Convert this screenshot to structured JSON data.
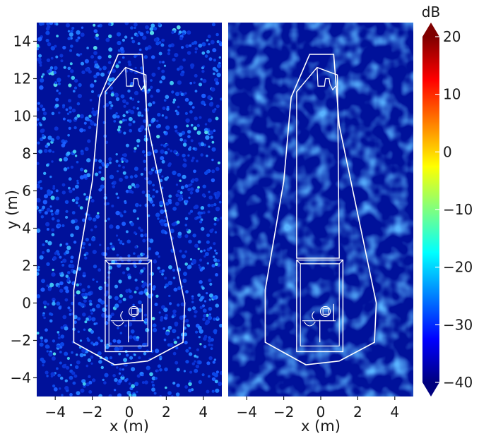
{
  "figure": {
    "colorbar_unit": "dB"
  },
  "chart_data": [
    {
      "type": "heatmap",
      "panel": "left",
      "xlabel": "x (m)",
      "ylabel": "y (m)",
      "xlim": [
        -5,
        5
      ],
      "ylim": [
        -5,
        15
      ],
      "xticks": [
        "−4",
        "−2",
        "0",
        "2",
        "4"
      ],
      "yticks": [
        "−4",
        "−2",
        "0",
        "2",
        "4",
        "6",
        "8",
        "10",
        "12",
        "14"
      ],
      "xtick_values": [
        -4,
        -2,
        0,
        2,
        4
      ],
      "ytick_values": [
        -4,
        -2,
        0,
        2,
        4,
        6,
        8,
        10,
        12,
        14
      ],
      "value_range_db": [
        -40,
        20
      ],
      "background_level_db": -40,
      "texture": "sparse-speckle",
      "outline_color": "#ffffff",
      "outline_shapes": {
        "hull": [
          [
            -0.6,
            13.3
          ],
          [
            0.7,
            13.3
          ],
          [
            1.0,
            9.5
          ],
          [
            3.0,
            0.0
          ],
          [
            2.9,
            -2.1
          ],
          [
            1.0,
            -3.1
          ],
          [
            -0.8,
            -3.3
          ],
          [
            -3.0,
            -2.1
          ],
          [
            -3.0,
            0.7
          ],
          [
            -2.0,
            6.5
          ],
          [
            -1.6,
            11.0
          ]
        ],
        "inner_body": [
          [
            -1.3,
            11.3
          ],
          [
            -0.2,
            12.6
          ],
          [
            0.9,
            12.2
          ],
          [
            1.0,
            2.4
          ],
          [
            -1.3,
            2.4
          ]
        ],
        "cabin_box": [
          [
            -1.3,
            2.3
          ],
          [
            1.2,
            2.3
          ],
          [
            1.2,
            -2.6
          ],
          [
            -1.3,
            -2.6
          ]
        ]
      }
    },
    {
      "type": "heatmap",
      "panel": "right",
      "xlabel": "x (m)",
      "ylabel": "",
      "xlim": [
        -5,
        5
      ],
      "ylim": [
        -5,
        15
      ],
      "xticks": [
        "−4",
        "−2",
        "0",
        "2",
        "4"
      ],
      "xtick_values": [
        -4,
        -2,
        0,
        2,
        4
      ],
      "value_range_db": [
        -40,
        20
      ],
      "background_level_db": -37,
      "texture": "smooth-blobs",
      "outline_color": "#ffffff"
    }
  ],
  "colorbar": {
    "label": "dB",
    "min": -40,
    "max": 20,
    "ticks": [
      "−40",
      "−30",
      "−20",
      "−10",
      "0",
      "10",
      "20"
    ],
    "tick_values": [
      -40,
      -30,
      -20,
      -10,
      0,
      10,
      20
    ],
    "extend": "both",
    "colormap": "jet"
  }
}
